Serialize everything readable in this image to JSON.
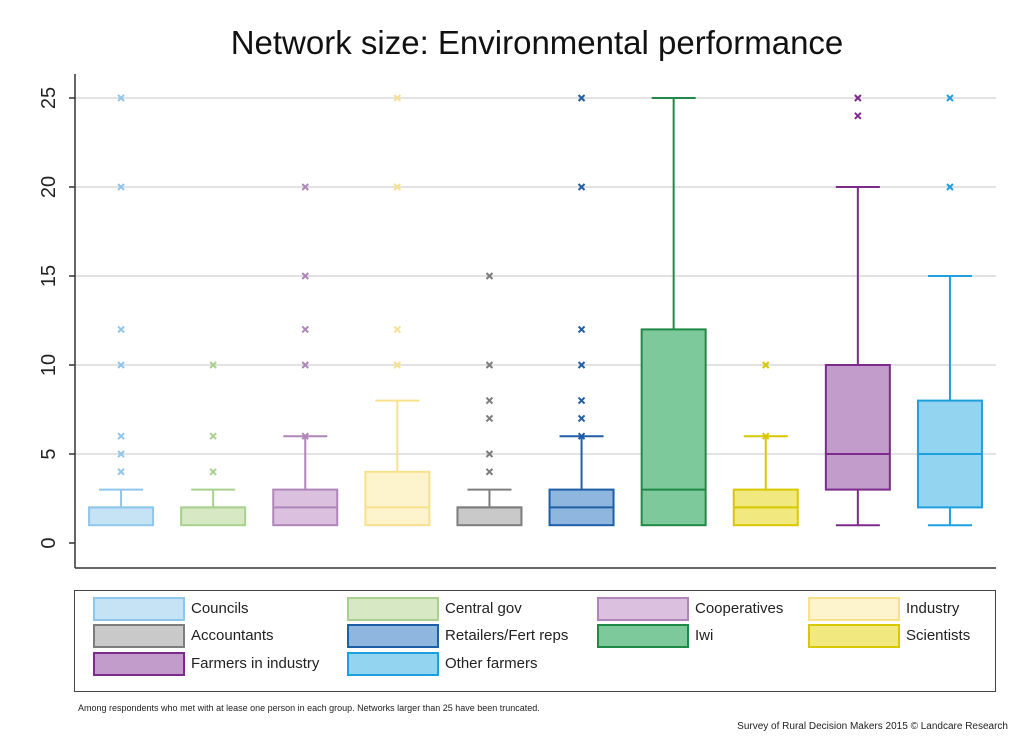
{
  "chart_data": {
    "type": "box",
    "title": "Network size: Environmental performance",
    "xlabel": "",
    "ylabel": "",
    "ylim": [
      0,
      25
    ],
    "yticks": [
      0,
      5,
      10,
      15,
      20,
      25
    ],
    "grid": true,
    "legend_position": "bottom",
    "series": [
      {
        "name": "Councils",
        "fill": "#c6e2f5",
        "stroke": "#8fc6ec",
        "min": 1,
        "q1": 1,
        "median": 2,
        "q3": 2,
        "max": 3,
        "outliers": [
          4,
          5,
          6,
          10,
          12,
          20,
          25
        ]
      },
      {
        "name": "Central gov",
        "fill": "#d7e8c4",
        "stroke": "#a9d08e",
        "min": 1,
        "q1": 1,
        "median": 2,
        "q3": 2,
        "max": 3,
        "outliers": [
          4,
          6,
          10
        ]
      },
      {
        "name": "Cooperatives",
        "fill": "#dbc1df",
        "stroke": "#b085ba",
        "min": 1,
        "q1": 1,
        "median": 2,
        "q3": 3,
        "max": 6,
        "outliers": [
          6,
          10,
          12,
          15,
          20
        ]
      },
      {
        "name": "Industry",
        "fill": "#fdf3cc",
        "stroke": "#f9e08c",
        "min": 1,
        "q1": 1,
        "median": 2,
        "q3": 4,
        "max": 8,
        "outliers": [
          10,
          12,
          20,
          25
        ]
      },
      {
        "name": "Accountants",
        "fill": "#c9c9c9",
        "stroke": "#7d7d7d",
        "min": 1,
        "q1": 1,
        "median": 2,
        "q3": 2,
        "max": 3,
        "outliers": [
          4,
          5,
          7,
          8,
          10,
          15
        ]
      },
      {
        "name": "Retailers/Fert reps",
        "fill": "#8fb6df",
        "stroke": "#1e5fa8",
        "min": 1,
        "q1": 1,
        "median": 2,
        "q3": 3,
        "max": 6,
        "outliers": [
          6,
          7,
          8,
          10,
          12,
          20,
          25
        ]
      },
      {
        "name": "Iwi",
        "fill": "#7ec99b",
        "stroke": "#1f8a46",
        "min": 1,
        "q1": 1,
        "median": 3,
        "q3": 12,
        "max": 25,
        "outliers": []
      },
      {
        "name": "Scientists",
        "fill": "#f1e87f",
        "stroke": "#d8c800",
        "min": 1,
        "q1": 1,
        "median": 2,
        "q3": 3,
        "max": 6,
        "outliers": [
          6,
          10
        ]
      },
      {
        "name": "Farmers in industry",
        "fill": "#c29dcb",
        "stroke": "#7c2a8c",
        "min": 1,
        "q1": 3,
        "median": 5,
        "q3": 10,
        "max": 20,
        "outliers": [
          24,
          25
        ]
      },
      {
        "name": "Other farmers",
        "fill": "#93d4f0",
        "stroke": "#1ea0dc",
        "min": 1,
        "q1": 2,
        "median": 5,
        "q3": 8,
        "max": 15,
        "outliers": [
          20,
          25
        ]
      }
    ],
    "legend_order": [
      "Councils",
      "Central gov",
      "Cooperatives",
      "Industry",
      "Accountants",
      "Retailers/Fert reps",
      "Iwi",
      "Scientists",
      "Farmers in industry",
      "Other farmers"
    ]
  },
  "note": "Among respondents who met with at lease one person in each group. Networks larger than 25 have been truncated.",
  "credit": "Survey of Rural Decision Makers 2015 © Landcare Research"
}
